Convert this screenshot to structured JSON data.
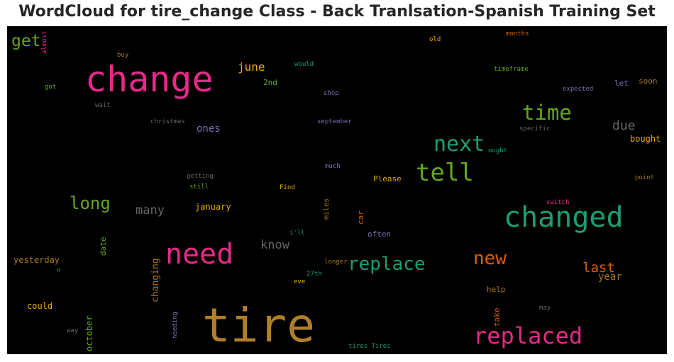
{
  "chart_data": {
    "type": "wordcloud",
    "title": "WordCloud for tire_change Class - Back Tranlsation-Spanish Training Set",
    "background": "#000000",
    "words": [
      {
        "text": "tire",
        "color": "#b07f2a"
      },
      {
        "text": "change",
        "color": "#e7298a"
      },
      {
        "text": "changed",
        "color": "#1b9e77"
      },
      {
        "text": "need",
        "color": "#e7298a"
      },
      {
        "text": "replaced",
        "color": "#e7298a"
      },
      {
        "text": "tell",
        "color": "#66a61e"
      },
      {
        "text": "next",
        "color": "#1b9e77"
      },
      {
        "text": "time",
        "color": "#66a61e"
      },
      {
        "text": "replace",
        "color": "#1b9e77"
      },
      {
        "text": "new",
        "color": "#d95f02"
      },
      {
        "text": "long",
        "color": "#66a61e"
      },
      {
        "text": "get",
        "color": "#66a61e"
      },
      {
        "text": "last",
        "color": "#d95f02"
      },
      {
        "text": "due",
        "color": "#666666"
      },
      {
        "text": "many",
        "color": "#666666"
      },
      {
        "text": "know",
        "color": "#666666"
      },
      {
        "text": "june",
        "color": "#e6ab02"
      },
      {
        "text": "ones",
        "color": "#7570b3"
      },
      {
        "text": "year",
        "color": "#a6761d"
      },
      {
        "text": "bought",
        "color": "#e6ab02"
      },
      {
        "text": "january",
        "color": "#e6ab02"
      },
      {
        "text": "changing",
        "color": "#a6761d"
      },
      {
        "text": "yesterday",
        "color": "#a6761d"
      },
      {
        "text": "could",
        "color": "#e6ab02"
      },
      {
        "text": "october",
        "color": "#66a61e"
      },
      {
        "text": "Please",
        "color": "#e6ab02"
      },
      {
        "text": "often",
        "color": "#7570b3"
      },
      {
        "text": "date",
        "color": "#66a61e"
      },
      {
        "text": "car",
        "color": "#d95f02"
      },
      {
        "text": "miles",
        "color": "#a6761d"
      },
      {
        "text": "help",
        "color": "#a6761d"
      },
      {
        "text": "take",
        "color": "#d95f02"
      },
      {
        "text": "2nd",
        "color": "#66a61e"
      },
      {
        "text": "let",
        "color": "#7570b3"
      },
      {
        "text": "soon",
        "color": "#a6761d"
      },
      {
        "text": "way",
        "color": "#666666"
      },
      {
        "text": "needing",
        "color": "#7570b3"
      },
      {
        "text": "got",
        "color": "#66a61e"
      },
      {
        "text": "buy",
        "color": "#a6761d"
      },
      {
        "text": "almost",
        "color": "#e7298a"
      },
      {
        "text": "wait",
        "color": "#666666"
      },
      {
        "text": "christmas",
        "color": "#666666"
      },
      {
        "text": "would",
        "color": "#1b9e77"
      },
      {
        "text": "shop",
        "color": "#7570b3"
      },
      {
        "text": "september",
        "color": "#7570b3"
      },
      {
        "text": "much",
        "color": "#7570b3"
      },
      {
        "text": "getting",
        "color": "#666666"
      },
      {
        "text": "still",
        "color": "#66a61e"
      },
      {
        "text": "Find",
        "color": "#e6ab02"
      },
      {
        "text": "i'll",
        "color": "#1b9e77"
      },
      {
        "text": "longer",
        "color": "#a6761d"
      },
      {
        "text": "27th",
        "color": "#1b9e77"
      },
      {
        "text": "eve",
        "color": "#e6ab02"
      },
      {
        "text": "u",
        "color": "#66a61e"
      },
      {
        "text": "old",
        "color": "#e6ab02"
      },
      {
        "text": "months",
        "color": "#d95f02"
      },
      {
        "text": "timeframe",
        "color": "#66a61e"
      },
      {
        "text": "expected",
        "color": "#7570b3"
      },
      {
        "text": "specific",
        "color": "#666666"
      },
      {
        "text": "ought",
        "color": "#1b9e77"
      },
      {
        "text": "point",
        "color": "#a6761d"
      },
      {
        "text": "switch",
        "color": "#e7298a"
      },
      {
        "text": "may",
        "color": "#666666"
      },
      {
        "text": "tires Tires",
        "color": "#1b9e77"
      }
    ]
  }
}
